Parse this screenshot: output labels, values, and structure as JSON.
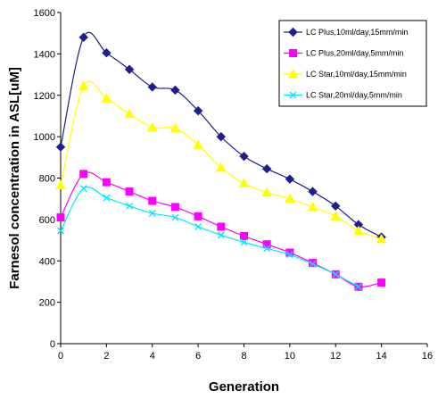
{
  "chart_data": {
    "type": "line",
    "title": "",
    "xlabel": "Generation",
    "ylabel": "Farnesol concentration in ASL[uM]",
    "xlim": [
      0,
      16
    ],
    "ylim": [
      0,
      1600
    ],
    "xticks": [
      0,
      2,
      4,
      6,
      8,
      10,
      12,
      14,
      16
    ],
    "yticks": [
      0,
      200,
      400,
      600,
      800,
      1000,
      1200,
      1400,
      1600
    ],
    "grid": false,
    "legend_position": "top-right",
    "smooth": true,
    "series": [
      {
        "name": "LC Plus,10ml/day,15mm/min",
        "color": "#1F1F8C",
        "marker": "diamond",
        "x": [
          0,
          1,
          2,
          3,
          4,
          5,
          6,
          7,
          8,
          9,
          10,
          11,
          12,
          13,
          14
        ],
        "y": [
          950,
          1480,
          1405,
          1325,
          1240,
          1225,
          1125,
          1000,
          905,
          845,
          795,
          735,
          665,
          575,
          515
        ]
      },
      {
        "name": "LC Plus,20ml/day,5mm/min",
        "color": "#FF00FF",
        "marker": "square",
        "x": [
          0,
          1,
          2,
          3,
          4,
          5,
          6,
          7,
          8,
          9,
          10,
          11,
          12,
          13,
          14
        ],
        "y": [
          610,
          820,
          780,
          735,
          690,
          660,
          615,
          565,
          520,
          480,
          440,
          390,
          335,
          275,
          295
        ]
      },
      {
        "name": "LC Star,10ml/day,15mm/min",
        "color": "#FFFF00",
        "marker": "triangle",
        "x": [
          0,
          1,
          2,
          3,
          4,
          5,
          6,
          7,
          8,
          9,
          10,
          11,
          12,
          13,
          14
        ],
        "y": [
          765,
          1245,
          1185,
          1110,
          1045,
          1040,
          960,
          850,
          775,
          730,
          700,
          660,
          615,
          545,
          505
        ]
      },
      {
        "name": "LC Star,20ml/day,5mm/min",
        "color": "#00E5FF",
        "marker": "x",
        "x": [
          0,
          1,
          2,
          3,
          4,
          5,
          6,
          7,
          8,
          9,
          10,
          11,
          12,
          13,
          14
        ],
        "y": [
          545,
          750,
          705,
          665,
          630,
          610,
          565,
          525,
          490,
          460,
          430,
          385,
          335,
          275,
          null
        ]
      }
    ]
  }
}
